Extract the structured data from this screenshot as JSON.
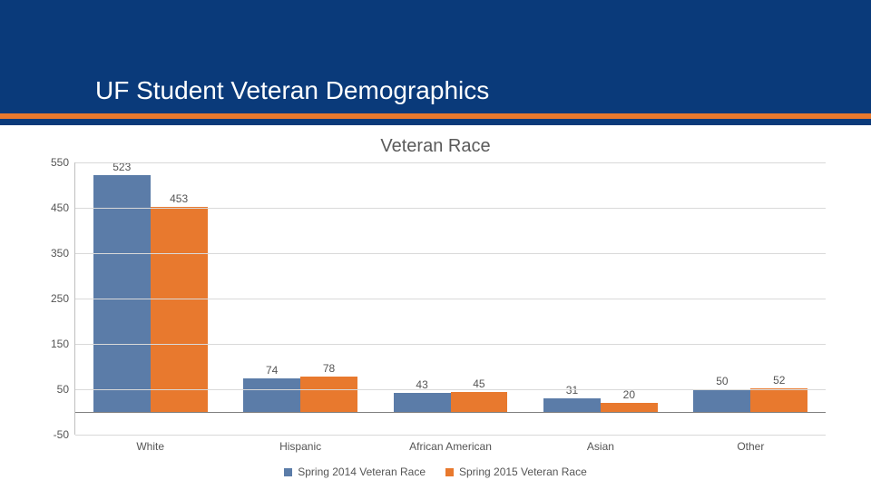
{
  "header": {
    "title": "UF Student Veteran Demographics",
    "top_band_color": "#0a3a7a",
    "accent_color": "#e8792e",
    "title_color": "#ffffff",
    "title_fontsize": 28
  },
  "chart": {
    "type": "bar",
    "title": "Veteran Race",
    "title_fontsize": 20,
    "title_color": "#5a5a5a",
    "ylim": [
      -50,
      550
    ],
    "ytick_step": 100,
    "yticks": [
      -50,
      50,
      150,
      250,
      350,
      450,
      550
    ],
    "grid_color": "#d9d9d9",
    "axis_color": "#bfbfbf",
    "baseline_color": "#808080",
    "background_color": "#ffffff",
    "label_fontsize": 12,
    "data_label_fontsize": 12,
    "bar_group_gap_ratio": 0.24,
    "categories": [
      "White",
      "Hispanic",
      "African American",
      "Asian",
      "Other"
    ],
    "series": [
      {
        "name": "Spring 2014 Veteran Race",
        "color": "#5b7ca8",
        "values": [
          523,
          74,
          43,
          31,
          50
        ]
      },
      {
        "name": "Spring 2015 Veteran Race",
        "color": "#e8792e",
        "values": [
          453,
          78,
          45,
          20,
          52
        ]
      }
    ],
    "legend": {
      "position": "bottom",
      "items": [
        {
          "label": "Spring 2014 Veteran Race",
          "color": "#5b7ca8"
        },
        {
          "label": "Spring 2015 Veteran Race",
          "color": "#e8792e"
        }
      ]
    }
  }
}
